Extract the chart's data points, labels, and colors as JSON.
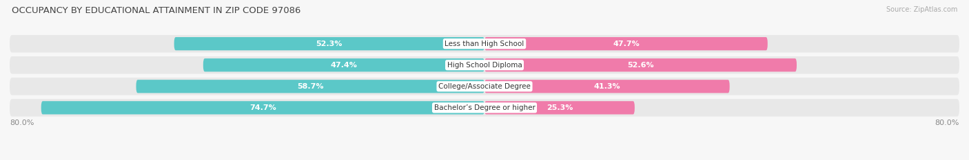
{
  "title": "OCCUPANCY BY EDUCATIONAL ATTAINMENT IN ZIP CODE 97086",
  "source": "Source: ZipAtlas.com",
  "categories": [
    "Less than High School",
    "High School Diploma",
    "College/Associate Degree",
    "Bachelor’s Degree or higher"
  ],
  "owner_pct": [
    52.3,
    47.4,
    58.7,
    74.7
  ],
  "renter_pct": [
    47.7,
    52.6,
    41.3,
    25.3
  ],
  "owner_color": "#5BC8C8",
  "renter_color": "#F07BAA",
  "row_bg_color": "#e8e8e8",
  "background_color": "#f7f7f7",
  "x_left_label": "80.0%",
  "x_right_label": "80.0%",
  "label_fontsize": 8.0,
  "title_fontsize": 9.5,
  "source_fontsize": 7.0,
  "legend_fontsize": 8.0
}
